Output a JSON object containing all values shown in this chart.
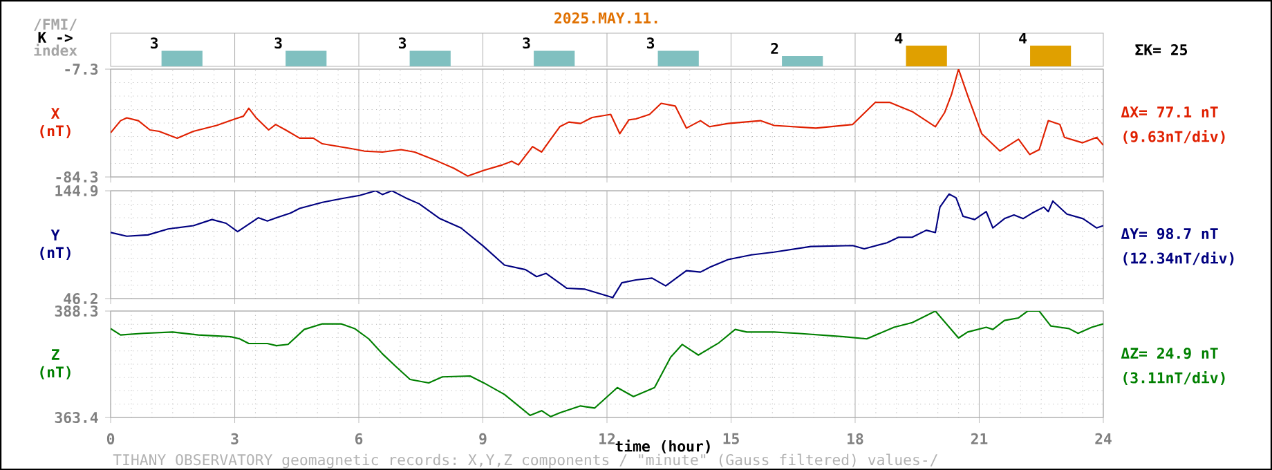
{
  "chart_data": [
    {
      "type": "bar",
      "title": "2025.MAY.11.",
      "ylabel": "K ->",
      "categories": [
        null,
        null,
        null,
        null,
        null,
        null,
        null,
        null
      ],
      "values": [
        3,
        3,
        3,
        3,
        3,
        2,
        4,
        4
      ],
      "colors": [
        "#80c0c0",
        "#80c0c0",
        "#80c0c0",
        "#80c0c0",
        "#80c0c0",
        "#80c0c0",
        "#e0a000",
        "#e0a000"
      ],
      "data_labels": true,
      "grid": "x",
      "tick_labels": false,
      "annotations": [
        "/FMI/",
        "index",
        "ΣK= 25"
      ]
    },
    {
      "type": "line",
      "ylabel": "X (nT)",
      "xlim": [
        0,
        24
      ],
      "xticks": [
        0,
        3,
        6,
        9,
        12,
        15,
        18,
        21,
        24
      ],
      "ylim": [
        -84.3,
        -7.3
      ],
      "yticks": [
        -84.3,
        -7.3
      ],
      "grid": true,
      "tick_labels": "y",
      "line_style": "solid",
      "series": [
        {
          "color": "#e02000",
          "x": [
            0,
            0.24,
            0.39,
            0.67,
            0.95,
            1.17,
            1.61,
            2.0,
            2.56,
            3.01,
            3.21,
            3.34,
            3.51,
            3.82,
            3.99,
            4.23,
            4.57,
            4.9,
            5.12,
            5.79,
            6.13,
            6.57,
            7.02,
            7.35,
            7.91,
            8.3,
            8.63,
            9.02,
            9.47,
            9.7,
            9.86,
            10.2,
            10.42,
            10.64,
            10.86,
            11.08,
            11.36,
            11.64,
            12.09,
            12.31,
            12.53,
            12.7,
            13.03,
            13.31,
            13.65,
            13.92,
            14.26,
            14.48,
            14.93,
            15.71,
            16.04,
            17.05,
            17.94,
            18.49,
            18.83,
            19.38,
            19.94,
            20.16,
            20.33,
            20.5,
            20.73,
            21.06,
            21.5,
            21.95,
            22.22,
            22.45,
            22.67,
            22.95,
            23.06,
            23.5,
            23.84,
            24.0
          ],
          "values": [
            -52.7,
            -44.1,
            -42.1,
            -44.1,
            -50.7,
            -51.7,
            -56.6,
            -51.7,
            -47.5,
            -42.8,
            -40.9,
            -35.2,
            -41.8,
            -50.7,
            -46.8,
            -50.7,
            -56.6,
            -56.6,
            -60.6,
            -63.9,
            -65.8,
            -66.5,
            -64.8,
            -66.5,
            -73.1,
            -78.1,
            -83.6,
            -79.6,
            -75.7,
            -73.1,
            -75.7,
            -62.6,
            -66.5,
            -57.3,
            -48.4,
            -45.1,
            -46.1,
            -41.8,
            -39.6,
            -53.4,
            -43.5,
            -42.8,
            -39.6,
            -31.7,
            -33.6,
            -49.4,
            -44.1,
            -48.4,
            -46.1,
            -44.1,
            -47.5,
            -49.4,
            -46.8,
            -31.0,
            -31.0,
            -37.6,
            -48.4,
            -38.5,
            -25.4,
            -7.3,
            -27.0,
            -53.4,
            -65.8,
            -57.3,
            -68.2,
            -64.8,
            -44.1,
            -46.8,
            -56.0,
            -59.9,
            -56.0,
            -61.6
          ]
        }
      ],
      "annotations": [
        "ΔX= 77.1 nT",
        "(9.63nT/div)"
      ]
    },
    {
      "type": "line",
      "ylabel": "Y (nT)",
      "xlim": [
        0,
        24
      ],
      "xticks": [
        0,
        3,
        6,
        9,
        12,
        15,
        18,
        21,
        24
      ],
      "ylim": [
        46.2,
        144.9
      ],
      "yticks": [
        46.2,
        144.9
      ],
      "grid": true,
      "tick_labels": "y",
      "line_style": "solid",
      "series": [
        {
          "color": "#000080",
          "x": [
            0,
            0.39,
            0.9,
            1.39,
            2.0,
            2.45,
            2.79,
            3.07,
            3.57,
            3.79,
            4.01,
            4.35,
            4.57,
            5.12,
            5.57,
            6.02,
            6.41,
            6.57,
            6.8,
            7.13,
            7.46,
            7.96,
            8.47,
            9.02,
            9.52,
            10.03,
            10.3,
            10.53,
            11.03,
            11.47,
            12.14,
            12.36,
            12.7,
            13.09,
            13.42,
            13.92,
            14.26,
            14.48,
            14.93,
            15.49,
            16.04,
            16.93,
            17.94,
            18.22,
            18.77,
            19.05,
            19.38,
            19.72,
            19.94,
            20.05,
            20.27,
            20.44,
            20.61,
            20.89,
            21.17,
            21.33,
            21.61,
            21.84,
            22.06,
            22.28,
            22.56,
            22.67,
            22.78,
            23.12,
            23.51,
            23.84,
            24.0
          ],
          "values": [
            106.7,
            103.3,
            104.5,
            110.0,
            113.0,
            118.6,
            115.2,
            107.5,
            120.2,
            117.3,
            120.2,
            124.5,
            128.8,
            134.3,
            137.7,
            140.7,
            144.9,
            141.5,
            144.9,
            138.5,
            133.0,
            119.4,
            110.9,
            93.9,
            76.9,
            72.7,
            66.3,
            69.3,
            55.7,
            54.8,
            47.1,
            60.7,
            63.3,
            65.0,
            57.8,
            71.8,
            70.5,
            74.8,
            82.0,
            86.2,
            88.8,
            93.9,
            94.8,
            91.8,
            97.3,
            102.4,
            102.4,
            108.8,
            106.7,
            130.0,
            141.9,
            138.5,
            121.5,
            118.6,
            125.8,
            110.9,
            119.4,
            122.8,
            119.4,
            124.5,
            130.0,
            125.8,
            135.5,
            123.6,
            119.4,
            110.9,
            113.0
          ]
        }
      ],
      "annotations": [
        "ΔY= 98.7 nT",
        "(12.34nT/div)"
      ]
    },
    {
      "type": "line",
      "ylabel": "Z (nT)",
      "xlabel": "time (hour)",
      "xlim": [
        0,
        24
      ],
      "xticks": [
        0,
        3,
        6,
        9,
        12,
        15,
        18,
        21,
        24
      ],
      "ylim": [
        363.4,
        388.3
      ],
      "yticks": [
        363.4,
        388.3
      ],
      "grid": true,
      "line_style": "solid",
      "series": [
        {
          "color": "#008000",
          "x": [
            0,
            0.24,
            0.79,
            1.5,
            2.12,
            2.9,
            3.12,
            3.34,
            3.79,
            4.01,
            4.29,
            4.68,
            5.12,
            5.57,
            5.9,
            6.24,
            6.57,
            6.9,
            7.24,
            7.69,
            8.02,
            8.69,
            9.02,
            9.52,
            10.14,
            10.42,
            10.64,
            10.86,
            11.36,
            11.7,
            12.25,
            12.64,
            13.15,
            13.54,
            13.82,
            14.21,
            14.71,
            15.1,
            15.38,
            16.04,
            16.6,
            17.72,
            18.28,
            18.94,
            19.38,
            19.94,
            20.5,
            20.72,
            21.17,
            21.33,
            21.61,
            21.95,
            22.17,
            22.45,
            22.73,
            23.17,
            23.39,
            23.72,
            24.0
          ],
          "values": [
            384.2,
            382.7,
            383.1,
            383.4,
            382.7,
            382.3,
            381.8,
            380.7,
            380.7,
            380.2,
            380.5,
            384.0,
            385.3,
            385.3,
            384.2,
            381.8,
            378.3,
            375.3,
            372.3,
            371.5,
            372.9,
            373.1,
            371.5,
            368.8,
            363.9,
            365.0,
            363.6,
            364.5,
            366.1,
            365.6,
            370.4,
            368.3,
            370.4,
            377.5,
            380.5,
            378.0,
            380.9,
            384.0,
            383.4,
            383.4,
            383.1,
            382.3,
            381.8,
            384.5,
            385.6,
            388.3,
            382.0,
            383.4,
            384.5,
            384.0,
            386.1,
            386.7,
            388.3,
            388.3,
            384.8,
            384.2,
            383.1,
            384.5,
            385.3
          ]
        }
      ],
      "annotations": [
        "ΔZ= 24.9 nT",
        "(3.11nT/div)",
        "TIHANY OBSERVATORY   geomagnetic records:  X,Y,Z  components   / \"minute\" (Gauss filtered) values-/"
      ]
    }
  ]
}
